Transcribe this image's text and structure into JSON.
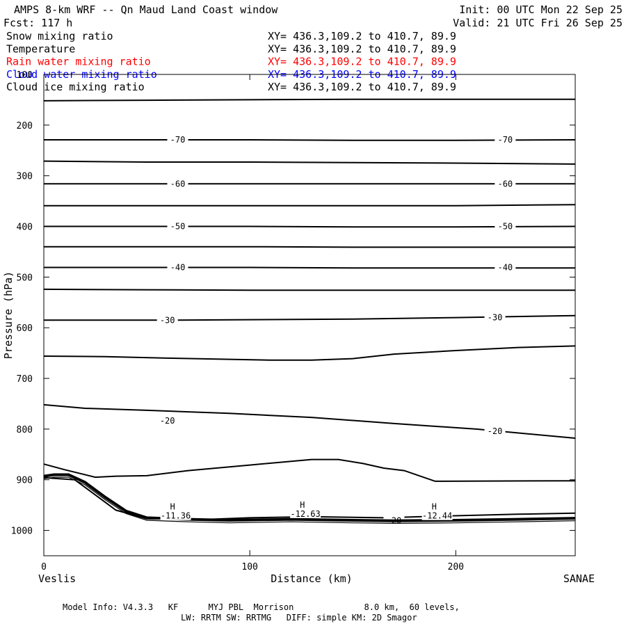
{
  "header": {
    "title": "AMPS 8-km WRF -- Qn Maud Land Coast window",
    "forecast": "Fcst:  117 h",
    "init": "Init: 00 UTC Mon 22 Sep 25",
    "valid": "Valid: 21 UTC Fri 26 Sep 25"
  },
  "fields": [
    {
      "name": "Snow mixing ratio",
      "xy": "XY= 436.3,109.2 to 410.7, 89.9",
      "color": "#000000"
    },
    {
      "name": "Temperature",
      "xy": "XY= 436.3,109.2 to 410.7, 89.9",
      "color": "#000000"
    },
    {
      "name": "Rain water mixing ratio",
      "xy": "XY= 436.3,109.2 to 410.7, 89.9",
      "color": "#ff0000"
    },
    {
      "name": "Cloud water mixing ratio",
      "xy": "XY= 436.3,109.2 to 410.7, 89.9",
      "color": "#0000ff"
    },
    {
      "name": "Cloud ice mixing ratio",
      "xy": "XY= 436.3,109.2 to 410.7, 89.9",
      "color": "#000000"
    }
  ],
  "chart_data": {
    "type": "line",
    "xlabel": "Distance (km)",
    "ylabel": "Pressure (hPa)",
    "xlim": [
      0,
      258
    ],
    "ylim": [
      100,
      1050
    ],
    "y_inverted": true,
    "xticks": [
      0,
      100,
      200
    ],
    "yticks": [
      100,
      200,
      300,
      400,
      500,
      600,
      700,
      800,
      900,
      1000
    ],
    "left_endpoint": "Veslis",
    "right_endpoint": "SANAE",
    "grid": false,
    "series": [
      {
        "points": [
          [
            0,
            152
          ],
          [
            50,
            151
          ],
          [
            100,
            150
          ],
          [
            150,
            149
          ],
          [
            200,
            149
          ],
          [
            258,
            149
          ]
        ]
      },
      {
        "label": "-70",
        "label_pos": [
          [
            65,
            229
          ],
          [
            224,
            229
          ]
        ],
        "points": [
          [
            0,
            229
          ],
          [
            50,
            229
          ],
          [
            100,
            229
          ],
          [
            150,
            230
          ],
          [
            200,
            230
          ],
          [
            258,
            229
          ]
        ]
      },
      {
        "points": [
          [
            0,
            271
          ],
          [
            50,
            273
          ],
          [
            100,
            273
          ],
          [
            150,
            274
          ],
          [
            200,
            275
          ],
          [
            258,
            277
          ]
        ]
      },
      {
        "label": "-60",
        "label_pos": [
          [
            65,
            316
          ],
          [
            224,
            316
          ]
        ],
        "points": [
          [
            0,
            316
          ],
          [
            50,
            316
          ],
          [
            100,
            316
          ],
          [
            150,
            316
          ],
          [
            200,
            316
          ],
          [
            258,
            316
          ]
        ]
      },
      {
        "points": [
          [
            0,
            359
          ],
          [
            50,
            359
          ],
          [
            100,
            359
          ],
          [
            150,
            359
          ],
          [
            200,
            359
          ],
          [
            258,
            357
          ]
        ]
      },
      {
        "label": "-50",
        "label_pos": [
          [
            65,
            400
          ],
          [
            224,
            400
          ]
        ],
        "points": [
          [
            0,
            400
          ],
          [
            50,
            400
          ],
          [
            100,
            400
          ],
          [
            150,
            401
          ],
          [
            200,
            401
          ],
          [
            258,
            400
          ]
        ]
      },
      {
        "points": [
          [
            0,
            440
          ],
          [
            50,
            440
          ],
          [
            100,
            440
          ],
          [
            150,
            441
          ],
          [
            200,
            441
          ],
          [
            258,
            441
          ]
        ]
      },
      {
        "label": "-40",
        "label_pos": [
          [
            65,
            481
          ],
          [
            224,
            481
          ]
        ],
        "points": [
          [
            0,
            481
          ],
          [
            50,
            481
          ],
          [
            100,
            481
          ],
          [
            150,
            482
          ],
          [
            200,
            482
          ],
          [
            258,
            482
          ]
        ]
      },
      {
        "points": [
          [
            0,
            524
          ],
          [
            50,
            525
          ],
          [
            100,
            526
          ],
          [
            150,
            526
          ],
          [
            200,
            526
          ],
          [
            258,
            526
          ]
        ]
      },
      {
        "label": "-30",
        "label_pos": [
          [
            60,
            585
          ],
          [
            219,
            580
          ]
        ],
        "points": [
          [
            0,
            585
          ],
          [
            30,
            585
          ],
          [
            60,
            585
          ],
          [
            100,
            584
          ],
          [
            150,
            583
          ],
          [
            200,
            580
          ],
          [
            258,
            576
          ]
        ]
      },
      {
        "points": [
          [
            0,
            656
          ],
          [
            30,
            657
          ],
          [
            60,
            660
          ],
          [
            110,
            664
          ],
          [
            130,
            664
          ],
          [
            150,
            661
          ],
          [
            170,
            652
          ],
          [
            200,
            645
          ],
          [
            230,
            639
          ],
          [
            258,
            636
          ]
        ]
      },
      {
        "label": "-20",
        "label_pos": [
          [
            60,
            784
          ],
          [
            219,
            804
          ]
        ],
        "points": [
          [
            0,
            752
          ],
          [
            20,
            759
          ],
          [
            50,
            763
          ],
          [
            90,
            769
          ],
          [
            130,
            777
          ],
          [
            170,
            789
          ],
          [
            210,
            800
          ],
          [
            258,
            818
          ]
        ]
      },
      {
        "points": [
          [
            0,
            869
          ],
          [
            10,
            880
          ],
          [
            25,
            895
          ],
          [
            35,
            893
          ],
          [
            50,
            892
          ],
          [
            70,
            882
          ],
          [
            100,
            871
          ],
          [
            130,
            860
          ],
          [
            143,
            860
          ],
          [
            155,
            868
          ],
          [
            165,
            877
          ],
          [
            175,
            882
          ],
          [
            190,
            903
          ],
          [
            258,
            902
          ]
        ]
      },
      {
        "label": "-20",
        "label_pos": [
          [
            170,
            981
          ]
        ],
        "points": [
          [
            0,
            896
          ],
          [
            15,
            900
          ],
          [
            35,
            960
          ],
          [
            50,
            977
          ],
          [
            80,
            978
          ],
          [
            100,
            975
          ],
          [
            130,
            973
          ],
          [
            165,
            975
          ],
          [
            190,
            972
          ],
          [
            230,
            968
          ],
          [
            258,
            966
          ]
        ]
      }
    ],
    "terrain": [
      [
        0,
        893
      ],
      [
        5,
        890
      ],
      [
        12,
        890
      ],
      [
        20,
        905
      ],
      [
        30,
        935
      ],
      [
        40,
        962
      ],
      [
        50,
        975
      ],
      [
        70,
        978
      ],
      [
        90,
        980
      ],
      [
        120,
        978
      ],
      [
        150,
        980
      ],
      [
        170,
        981
      ],
      [
        200,
        980
      ],
      [
        230,
        978
      ],
      [
        258,
        976
      ]
    ],
    "annotations": [
      {
        "marker": "H",
        "value": "-11.36",
        "x": 64,
        "p": 970
      },
      {
        "marker": "H",
        "value": "-12.63",
        "x": 127,
        "p": 966
      },
      {
        "marker": "H",
        "value": "-12.44",
        "x": 191,
        "p": 970
      }
    ]
  },
  "footer": {
    "line1": "Model Info: V4.3.3   KF      MYJ PBL  Morrison              8.0 km,  60 levels,",
    "line2": "LW: RRTM SW: RRTMG   DIFF: simple KM: 2D Smagor"
  }
}
